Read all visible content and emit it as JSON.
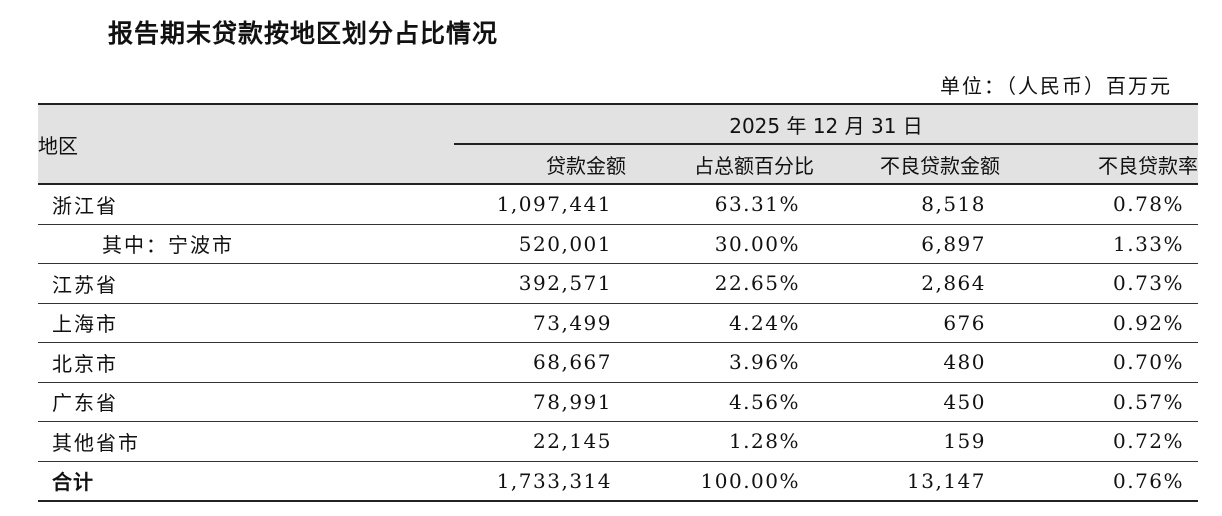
{
  "title": "报告期末贷款按地区划分占比情况",
  "unit": "单位：（人民币）百万元",
  "table": {
    "region_header": "地区",
    "date_header": "2025 年 12 月 31 日",
    "columns": [
      "贷款金额",
      "占总额百分比",
      "不良贷款金额",
      "不良贷款率"
    ],
    "rows": [
      {
        "region": "浙江省",
        "loan": "1,097,441",
        "share": "63.31%",
        "npl": "8,518",
        "npl_ratio": "0.78%"
      },
      {
        "region": "其中：宁波市",
        "loan": "520,001",
        "share": "30.00%",
        "npl": "6,897",
        "npl_ratio": "1.33%"
      },
      {
        "region": "江苏省",
        "loan": "392,571",
        "share": "22.65%",
        "npl": "2,864",
        "npl_ratio": "0.73%"
      },
      {
        "region": "上海市",
        "loan": "73,499",
        "share": "4.24%",
        "npl": "676",
        "npl_ratio": "0.92%"
      },
      {
        "region": "北京市",
        "loan": "68,667",
        "share": "3.96%",
        "npl": "480",
        "npl_ratio": "0.70%"
      },
      {
        "region": "广东省",
        "loan": "78,991",
        "share": "4.56%",
        "npl": "450",
        "npl_ratio": "0.57%"
      },
      {
        "region": "其他省市",
        "loan": "22,145",
        "share": "1.28%",
        "npl": "159",
        "npl_ratio": "0.72%"
      },
      {
        "region": "合计",
        "loan": "1,733,314",
        "share": "100.00%",
        "npl": "13,147",
        "npl_ratio": "0.76%"
      }
    ]
  }
}
